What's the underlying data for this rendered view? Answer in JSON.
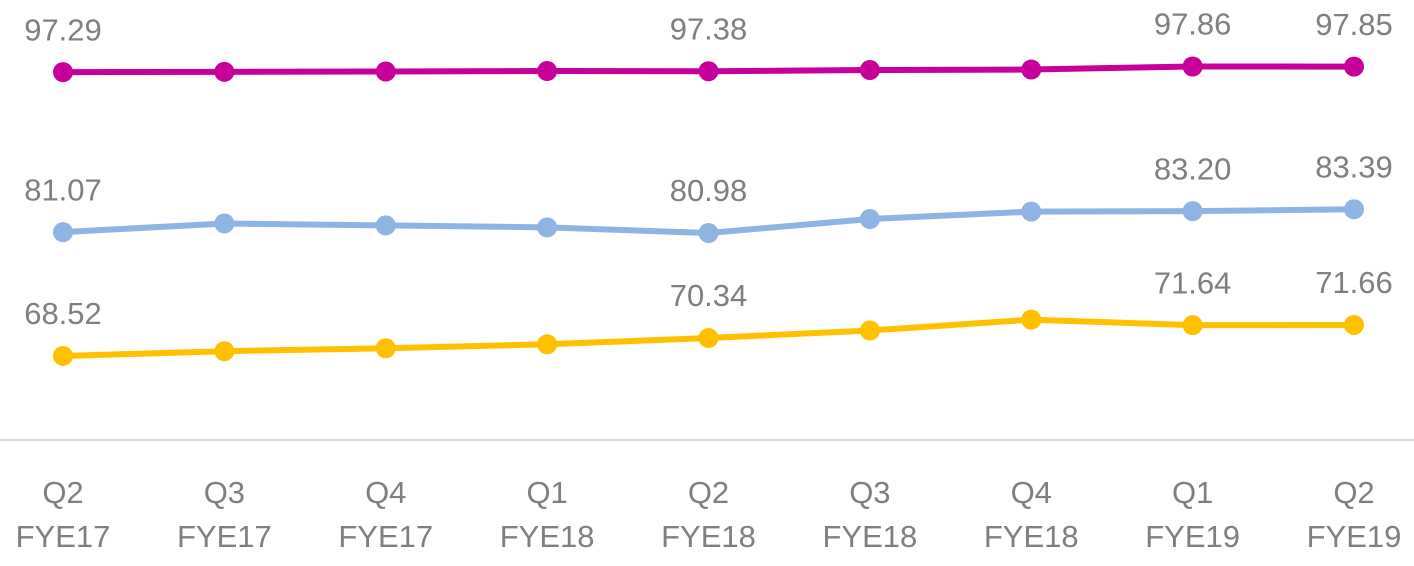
{
  "chart_data": {
    "type": "line",
    "categories": [
      [
        "Q2",
        "FYE17"
      ],
      [
        "Q3",
        "FYE17"
      ],
      [
        "Q4",
        "FYE17"
      ],
      [
        "Q1",
        "FYE18"
      ],
      [
        "Q2",
        "FYE18"
      ],
      [
        "Q3",
        "FYE18"
      ],
      [
        "Q4",
        "FYE18"
      ],
      [
        "Q1",
        "FYE19"
      ],
      [
        "Q2",
        "FYE19"
      ]
    ],
    "ylim": [
      60,
      104.6
    ],
    "series": [
      {
        "color": "#c8009b",
        "values": [
          97.29,
          97.32,
          97.35,
          97.4,
          97.38,
          97.5,
          97.55,
          97.86,
          97.85
        ],
        "value_labels": [
          "97.29",
          null,
          null,
          null,
          "97.38",
          null,
          null,
          "97.86",
          "97.85"
        ]
      },
      {
        "color": "#8eb4e3",
        "values": [
          81.07,
          81.95,
          81.75,
          81.55,
          80.98,
          82.4,
          83.15,
          83.2,
          83.39
        ],
        "value_labels": [
          "81.07",
          null,
          null,
          null,
          "80.98",
          null,
          null,
          "83.20",
          "83.39"
        ]
      },
      {
        "color": "#ffc000",
        "values": [
          68.52,
          69.0,
          69.3,
          69.7,
          70.34,
          71.1,
          72.2,
          71.64,
          71.66
        ],
        "value_labels": [
          "68.52",
          null,
          null,
          null,
          "70.34",
          null,
          null,
          "71.64",
          "71.66"
        ]
      }
    ]
  }
}
